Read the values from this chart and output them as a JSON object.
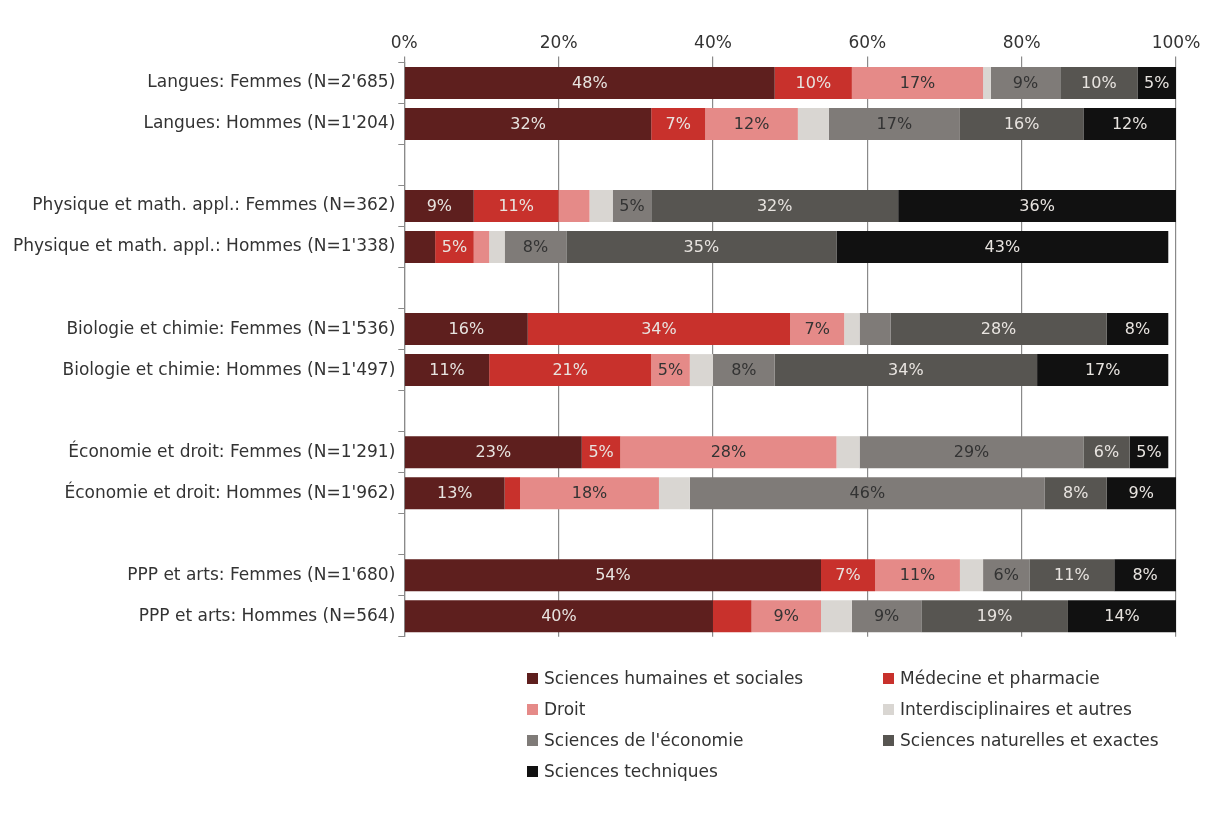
{
  "chart_data": {
    "type": "bar",
    "orientation": "horizontal",
    "stacked": true,
    "categories": [
      "Langues: Femmes (N=2'685)",
      "Langues: Hommes (N=1'204)",
      null,
      "Physique et math. appl.: Femmes (N=362)",
      "Physique et math. appl.: Hommes (N=1'338)",
      null,
      "Biologie et chimie: Femmes (N=1'536)",
      "Biologie et chimie: Hommes (N=1'497)",
      null,
      "Économie et droit: Femmes (N=1'291)",
      "Économie et droit: Hommes (N=1'962)",
      null,
      "PPP et arts: Femmes (N=1'680)",
      "PPP et arts: Hommes (N=564)"
    ],
    "xlim": [
      0,
      100
    ],
    "xticks": [
      {
        "value": 0,
        "label": "0%"
      },
      {
        "value": 20,
        "label": "20%"
      },
      {
        "value": 40,
        "label": "40%"
      },
      {
        "value": 60,
        "label": "60%"
      },
      {
        "value": 80,
        "label": "80%"
      },
      {
        "value": 100,
        "label": "100%"
      }
    ],
    "grid": "x",
    "legend": "bottom",
    "series": [
      {
        "name": "Sciences humaines et sociales",
        "color": "#5e1f1e",
        "values": [
          48,
          32,
          null,
          9,
          4,
          null,
          16,
          11,
          null,
          23,
          13,
          null,
          54,
          40
        ],
        "value_labels": [
          "48%",
          "32%",
          null,
          "9%",
          null,
          null,
          "16%",
          "11%",
          null,
          "23%",
          "13%",
          null,
          "54%",
          "40%"
        ]
      },
      {
        "name": "Médecine et pharmacie",
        "color": "#c8312c",
        "values": [
          10,
          7,
          null,
          11,
          5,
          null,
          34,
          21,
          null,
          5,
          2,
          null,
          7,
          5
        ],
        "value_labels": [
          "10%",
          "7%",
          null,
          "11%",
          "5%",
          null,
          "34%",
          "21%",
          null,
          "5%",
          null,
          null,
          "7%",
          null
        ]
      },
      {
        "name": "Droit",
        "color": "#e58a88",
        "values": [
          17,
          12,
          null,
          4,
          2,
          null,
          7,
          5,
          null,
          28,
          18,
          null,
          11,
          9
        ],
        "value_labels": [
          "17%",
          "12%",
          null,
          null,
          null,
          null,
          "7%",
          "5%",
          null,
          "28%",
          "18%",
          null,
          "11%",
          "9%"
        ]
      },
      {
        "name": "Interdisciplinaires et autres",
        "color": "#d9d6d2",
        "values": [
          1,
          4,
          null,
          3,
          2,
          null,
          2,
          3,
          null,
          3,
          4,
          null,
          3,
          4
        ],
        "value_labels": [
          null,
          null,
          null,
          null,
          null,
          null,
          null,
          null,
          null,
          null,
          null,
          null,
          null,
          null
        ]
      },
      {
        "name": "Sciences de l'économie",
        "color": "#7f7b78",
        "values": [
          9,
          17,
          null,
          5,
          8,
          null,
          4,
          8,
          null,
          29,
          46,
          null,
          6,
          9
        ],
        "value_labels": [
          "9%",
          "17%",
          null,
          "5%",
          "8%",
          null,
          null,
          "8%",
          null,
          "29%",
          "46%",
          null,
          "6%",
          "9%"
        ]
      },
      {
        "name": "Sciences naturelles et exactes",
        "color": "#575551",
        "values": [
          10,
          16,
          null,
          32,
          35,
          null,
          28,
          34,
          null,
          6,
          8,
          null,
          11,
          19
        ],
        "value_labels": [
          "10%",
          "16%",
          null,
          "32%",
          "35%",
          null,
          "28%",
          "34%",
          null,
          "6%",
          "8%",
          null,
          "11%",
          "19%"
        ]
      },
      {
        "name": "Sciences techniques",
        "color": "#111111",
        "values": [
          5,
          12,
          null,
          36,
          43,
          null,
          8,
          17,
          null,
          5,
          9,
          null,
          8,
          14
        ],
        "value_labels": [
          "5%",
          "12%",
          null,
          "36%",
          "43%",
          null,
          "8%",
          "17%",
          null,
          "5%",
          "9%",
          null,
          "8%",
          "14%"
        ]
      }
    ]
  }
}
